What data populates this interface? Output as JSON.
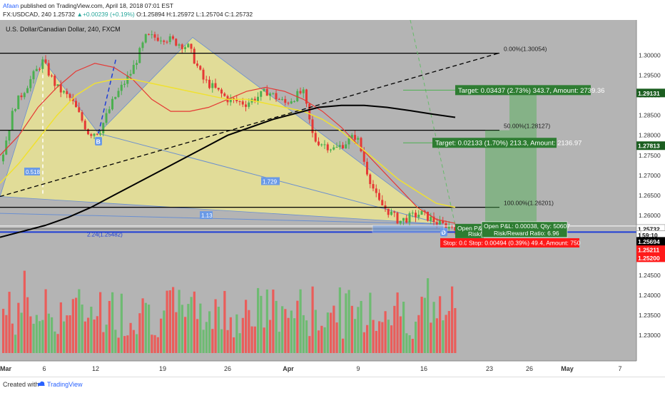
{
  "header": {
    "author": "Afaan",
    "published": " published on TradingView.com, April 18, 2018 07:01 EST",
    "symbol": "FX:USDCAD, 240",
    "last_price": "1.25732",
    "change_arrow": "▲",
    "change": "+0.00239 (+0.19%)",
    "ohlc": "O:1.25894 H:1.25972 L:1.25704 C:1.25732"
  },
  "footer": {
    "created_with": "Created with",
    "brand": "TradingView"
  },
  "colors": {
    "background": "#b4b4b4",
    "pattern_fill": "#e9e393",
    "up_candle": "#4caf50",
    "down_candle": "#e53935",
    "ema_red": "#e53935",
    "ema_yellow": "#f0e130",
    "ema_black": "#000000",
    "accent_blue": "#1e3ed6",
    "target_green": "#2e7d32",
    "stop_red": "#ff1a1a"
  },
  "chart_data": {
    "type": "candlestick",
    "title": "U.S. Dollar/Canadian Dollar, 240, FXCM",
    "x_tick_labels": [
      "Mar",
      "6",
      "12",
      "19",
      "26",
      "Apr",
      "9",
      "16",
      "23",
      "26",
      "May",
      "7"
    ],
    "y_tick_labels": [
      "1.30000",
      "1.29500",
      "1.29000",
      "1.28500",
      "1.28000",
      "1.27500",
      "1.27000",
      "1.26500",
      "1.26000",
      "1.25500",
      "1.25000",
      "1.24500",
      "1.24000",
      "1.23500",
      "1.23000"
    ],
    "ylim": [
      1.2268,
      1.3035
    ],
    "price_badges": [
      {
        "label": "1.29131",
        "value": 1.29131,
        "color": "#1b5e20"
      },
      {
        "label": "1.27813",
        "value": 1.27813,
        "color": "#1b5e20"
      },
      {
        "label": "1.25732",
        "value": 1.25732,
        "color": "#ffffff"
      },
      {
        "label": "1.",
        "value": 1.2558,
        "color": "#ffffff"
      },
      {
        "label": "59:10",
        "value": 1.2558,
        "color": "#ffffff"
      },
      {
        "label": "1.25694",
        "value": 1.2542,
        "color": "#000000"
      },
      {
        "label": "1.25680",
        "value": 1.2525,
        "color": "#000000"
      },
      {
        "label": "1.25211",
        "value": 1.25211,
        "color": "#ff1a1a"
      },
      {
        "label": "1.25200",
        "value": 1.2501,
        "color": "#ff1a1a"
      }
    ],
    "harmonic_points": [
      "B",
      "D"
    ],
    "ratio_labels": [
      "0.518",
      "1.729",
      "1.13",
      "2.24(1.25482)"
    ],
    "fib_levels": [
      {
        "label": "0.00%(1.30054)",
        "value": 1.30054
      },
      {
        "label": "50.00%(1.28127)",
        "value": 1.28127
      },
      {
        "label": "100.00%(1.26201)",
        "value": 1.26201
      }
    ],
    "targets": [
      {
        "label": "Target: 0.03437 (2.73%) 343.7, Amount: 2739.36",
        "value": 1.29131
      },
      {
        "label": "Target: 0.02133 (1.70%) 213.3, Amount: 2136.97",
        "value": 1.27813
      }
    ],
    "position": {
      "open_pl_partial": "Open P&L",
      "risk_partial": "Risk/",
      "open_pl": "Open P&L: 0.00038, Qty: 50607",
      "risk_reward": "Risk/Reward Ratio: 6.96",
      "stop_partial": "Stop: 0.0",
      "stop": "Stop: 0.00494 (0.39%) 49.4, Amount: 750"
    },
    "key_levels": [
      1.30054,
      1.28127,
      1.26201,
      1.25732,
      1.2558
    ],
    "series": [
      {
        "name": "EMA red",
        "values": [
          1.275,
          1.28,
          1.287,
          1.292,
          1.296,
          1.298,
          1.297,
          1.294,
          1.289,
          1.286,
          1.286,
          1.287,
          1.289,
          1.291,
          1.292,
          1.291,
          1.289,
          1.286,
          1.282,
          1.277,
          1.272,
          1.267,
          1.262,
          1.259,
          1.258
        ]
      },
      {
        "name": "EMA yellow",
        "values": [
          1.268,
          1.273,
          1.279,
          1.285,
          1.29,
          1.293,
          1.294,
          1.294,
          1.293,
          1.292,
          1.291,
          1.29,
          1.289,
          1.289,
          1.288,
          1.287,
          1.286,
          1.284,
          1.281,
          1.277,
          1.273,
          1.269,
          1.266,
          1.263,
          1.262
        ]
      },
      {
        "name": "EMA black",
        "values": [
          1.2545,
          1.256,
          1.2575,
          1.2595,
          1.262,
          1.265,
          1.268,
          1.271,
          1.274,
          1.277,
          1.28,
          1.282,
          1.284,
          1.2855,
          1.287,
          1.2875,
          1.2875,
          1.287,
          1.2862,
          1.2853,
          1.2845
        ]
      }
    ]
  }
}
